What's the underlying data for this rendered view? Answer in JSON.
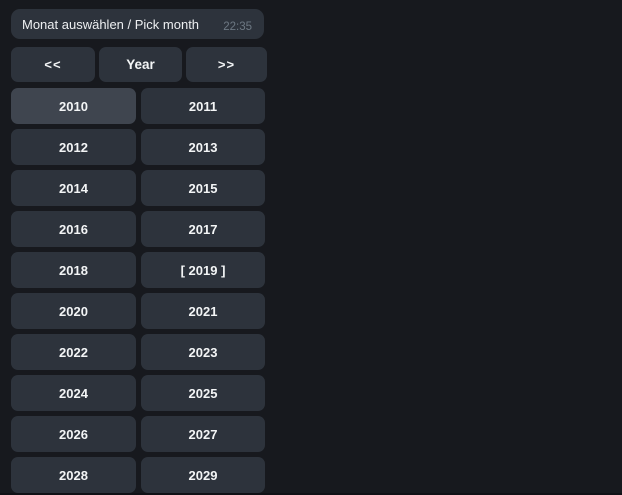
{
  "colors": {
    "background": "#17191e",
    "bubble": "#2d333c",
    "button": "#2d333c",
    "button_highlight": "#3f454f",
    "text": "#f3f5f6",
    "timestamp": "#6d7883"
  },
  "message": {
    "text": "Monat auswählen / Pick month",
    "time": "22:35"
  },
  "keyboard": {
    "nav": {
      "prev": "<<",
      "year": "Year",
      "next": ">>"
    },
    "years": [
      {
        "label": "2010",
        "highlighted": true
      },
      {
        "label": "2011"
      },
      {
        "label": "2012"
      },
      {
        "label": "2013"
      },
      {
        "label": "2014"
      },
      {
        "label": "2015"
      },
      {
        "label": "2016"
      },
      {
        "label": "2017"
      },
      {
        "label": "2018"
      },
      {
        "label": "[ 2019 ]",
        "selected": true
      },
      {
        "label": "2020"
      },
      {
        "label": "2021"
      },
      {
        "label": "2022"
      },
      {
        "label": "2023"
      },
      {
        "label": "2024"
      },
      {
        "label": "2025"
      },
      {
        "label": "2026"
      },
      {
        "label": "2027"
      },
      {
        "label": "2028"
      },
      {
        "label": "2029"
      }
    ]
  }
}
